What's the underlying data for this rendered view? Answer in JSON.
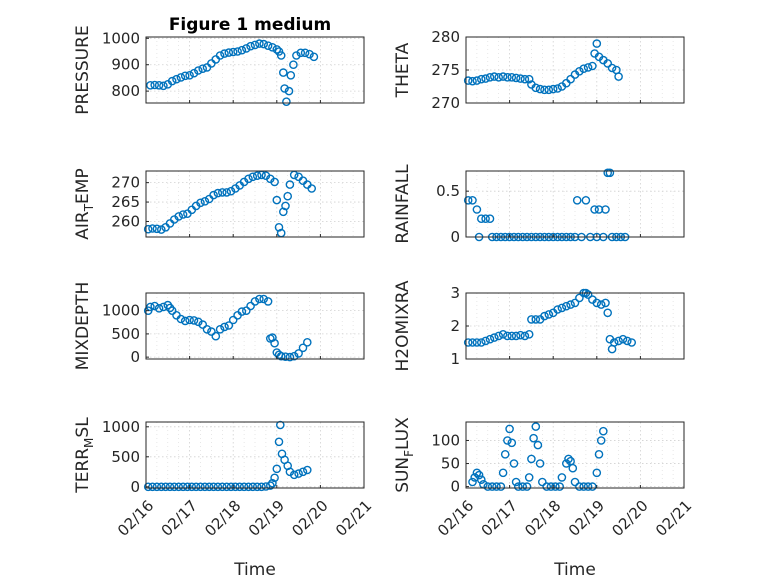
{
  "figure": {
    "title": "Figure 1 medium",
    "marker_color": "#0072BD"
  },
  "chart_data": [
    {
      "type": "scatter",
      "id": "pressure",
      "ylabel": "PRESSURE",
      "ylabel_sub": "",
      "ylim": [
        755,
        1005
      ],
      "yticks": [
        800,
        900,
        1000
      ],
      "xlim": [
        0,
        5
      ],
      "xticks": [],
      "points": [
        [
          0.1,
          822
        ],
        [
          0.2,
          823
        ],
        [
          0.3,
          822
        ],
        [
          0.4,
          820
        ],
        [
          0.5,
          826
        ],
        [
          0.6,
          838
        ],
        [
          0.7,
          845
        ],
        [
          0.8,
          852
        ],
        [
          0.9,
          858
        ],
        [
          1.0,
          860
        ],
        [
          1.1,
          868
        ],
        [
          1.2,
          878
        ],
        [
          1.3,
          885
        ],
        [
          1.4,
          890
        ],
        [
          1.5,
          905
        ],
        [
          1.6,
          920
        ],
        [
          1.7,
          935
        ],
        [
          1.8,
          942
        ],
        [
          1.9,
          946
        ],
        [
          2.0,
          948
        ],
        [
          2.1,
          950
        ],
        [
          2.2,
          955
        ],
        [
          2.3,
          962
        ],
        [
          2.4,
          970
        ],
        [
          2.5,
          975
        ],
        [
          2.6,
          980
        ],
        [
          2.7,
          978
        ],
        [
          2.8,
          972
        ],
        [
          2.9,
          966
        ],
        [
          3.0,
          958
        ],
        [
          3.05,
          950
        ],
        [
          3.1,
          935
        ],
        [
          3.15,
          870
        ],
        [
          3.18,
          810
        ],
        [
          3.22,
          760
        ],
        [
          3.28,
          800
        ],
        [
          3.32,
          860
        ],
        [
          3.38,
          900
        ],
        [
          3.45,
          935
        ],
        [
          3.55,
          945
        ],
        [
          3.65,
          945
        ],
        [
          3.75,
          940
        ],
        [
          3.85,
          930
        ]
      ]
    },
    {
      "type": "scatter",
      "id": "theta",
      "ylabel": "THETA",
      "ylabel_sub": "",
      "ylim": [
        270,
        280
      ],
      "yticks": [
        270,
        275,
        280
      ],
      "xlim": [
        0,
        5
      ],
      "xticks": [],
      "points": [
        [
          0.05,
          273.4
        ],
        [
          0.15,
          273.3
        ],
        [
          0.25,
          273.4
        ],
        [
          0.35,
          273.6
        ],
        [
          0.45,
          273.7
        ],
        [
          0.55,
          273.9
        ],
        [
          0.65,
          274.0
        ],
        [
          0.75,
          273.9
        ],
        [
          0.85,
          274.0
        ],
        [
          0.95,
          273.9
        ],
        [
          1.05,
          273.9
        ],
        [
          1.15,
          273.8
        ],
        [
          1.25,
          273.7
        ],
        [
          1.35,
          273.6
        ],
        [
          1.45,
          273.6
        ],
        [
          1.5,
          272.8
        ],
        [
          1.6,
          272.3
        ],
        [
          1.7,
          272.1
        ],
        [
          1.8,
          272.0
        ],
        [
          1.9,
          272.0
        ],
        [
          2.0,
          272.1
        ],
        [
          2.1,
          272.2
        ],
        [
          2.2,
          272.5
        ],
        [
          2.3,
          273.0
        ],
        [
          2.4,
          273.6
        ],
        [
          2.5,
          274.3
        ],
        [
          2.6,
          274.8
        ],
        [
          2.7,
          275.2
        ],
        [
          2.8,
          275.4
        ],
        [
          2.9,
          275.6
        ],
        [
          2.95,
          277.5
        ],
        [
          3.0,
          279.0
        ],
        [
          3.05,
          277.0
        ],
        [
          3.15,
          276.5
        ],
        [
          3.25,
          276.0
        ],
        [
          3.35,
          275.3
        ],
        [
          3.45,
          275.0
        ],
        [
          3.5,
          274.0
        ]
      ]
    },
    {
      "type": "scatter",
      "id": "air_temp",
      "ylabel": "AIR",
      "ylabel_sub": "T",
      "ylabel_tail": "EMP",
      "ylim": [
        256,
        273
      ],
      "yticks": [
        260,
        265,
        270
      ],
      "xlim": [
        0,
        5
      ],
      "xticks": [],
      "points": [
        [
          0.05,
          258.0
        ],
        [
          0.15,
          258.2
        ],
        [
          0.25,
          258.1
        ],
        [
          0.35,
          257.9
        ],
        [
          0.45,
          258.5
        ],
        [
          0.55,
          259.5
        ],
        [
          0.65,
          260.5
        ],
        [
          0.75,
          261.3
        ],
        [
          0.85,
          261.8
        ],
        [
          0.95,
          262.0
        ],
        [
          1.05,
          263.0
        ],
        [
          1.15,
          264.0
        ],
        [
          1.25,
          264.8
        ],
        [
          1.35,
          265.2
        ],
        [
          1.45,
          265.8
        ],
        [
          1.55,
          266.8
        ],
        [
          1.65,
          267.3
        ],
        [
          1.75,
          267.5
        ],
        [
          1.85,
          267.5
        ],
        [
          1.95,
          267.8
        ],
        [
          2.05,
          268.5
        ],
        [
          2.15,
          269.3
        ],
        [
          2.25,
          270.2
        ],
        [
          2.35,
          271.0
        ],
        [
          2.45,
          271.5
        ],
        [
          2.55,
          271.8
        ],
        [
          2.65,
          272.0
        ],
        [
          2.75,
          271.8
        ],
        [
          2.85,
          271.0
        ],
        [
          2.95,
          270.2
        ],
        [
          3.0,
          265.5
        ],
        [
          3.05,
          258.5
        ],
        [
          3.1,
          257.0
        ],
        [
          3.15,
          262.5
        ],
        [
          3.2,
          264.0
        ],
        [
          3.25,
          266.5
        ],
        [
          3.3,
          269.5
        ],
        [
          3.4,
          272.0
        ],
        [
          3.5,
          271.5
        ],
        [
          3.6,
          270.5
        ],
        [
          3.7,
          269.5
        ],
        [
          3.8,
          268.5
        ]
      ]
    },
    {
      "type": "scatter",
      "id": "rainfall",
      "ylabel": "RAINFALL",
      "ylabel_sub": "",
      "ylim": [
        0,
        0.72
      ],
      "yticks": [
        0,
        0.5
      ],
      "xlim": [
        0,
        5
      ],
      "xticks": [],
      "points": [
        [
          0.05,
          0.4
        ],
        [
          0.15,
          0.4
        ],
        [
          0.25,
          0.3
        ],
        [
          0.3,
          0.0
        ],
        [
          0.35,
          0.2
        ],
        [
          0.45,
          0.2
        ],
        [
          0.55,
          0.2
        ],
        [
          0.6,
          0.0
        ],
        [
          0.7,
          0.0
        ],
        [
          0.8,
          0.0
        ],
        [
          0.9,
          0.0
        ],
        [
          1.0,
          0.0
        ],
        [
          1.1,
          0.0
        ],
        [
          1.2,
          0.0
        ],
        [
          1.3,
          0.0
        ],
        [
          1.4,
          0.0
        ],
        [
          1.5,
          0.0
        ],
        [
          1.6,
          0.0
        ],
        [
          1.7,
          0.0
        ],
        [
          1.8,
          0.0
        ],
        [
          1.9,
          0.0
        ],
        [
          2.0,
          0.0
        ],
        [
          2.1,
          0.0
        ],
        [
          2.2,
          0.0
        ],
        [
          2.3,
          0.0
        ],
        [
          2.4,
          0.0
        ],
        [
          2.5,
          0.0
        ],
        [
          2.55,
          0.4
        ],
        [
          2.65,
          0.0
        ],
        [
          2.75,
          0.4
        ],
        [
          2.85,
          0.0
        ],
        [
          2.95,
          0.3
        ],
        [
          3.0,
          0.0
        ],
        [
          3.05,
          0.3
        ],
        [
          3.15,
          0.0
        ],
        [
          3.2,
          0.3
        ],
        [
          3.25,
          0.7
        ],
        [
          3.3,
          0.7
        ],
        [
          3.35,
          0.0
        ],
        [
          3.45,
          0.0
        ],
        [
          3.55,
          0.0
        ],
        [
          3.65,
          0.0
        ]
      ]
    },
    {
      "type": "scatter",
      "id": "mixdepth",
      "ylabel": "MIXDEPTH",
      "ylabel_sub": "",
      "ylim": [
        -40,
        1380
      ],
      "yticks": [
        0,
        500,
        1000
      ],
      "xlim": [
        0,
        5
      ],
      "xticks": [],
      "points": [
        [
          0.05,
          1000
        ],
        [
          0.1,
          1080
        ],
        [
          0.2,
          1100
        ],
        [
          0.3,
          1050
        ],
        [
          0.4,
          1080
        ],
        [
          0.5,
          1120
        ],
        [
          0.55,
          1060
        ],
        [
          0.6,
          1000
        ],
        [
          0.7,
          900
        ],
        [
          0.8,
          820
        ],
        [
          0.9,
          780
        ],
        [
          1.0,
          800
        ],
        [
          1.1,
          790
        ],
        [
          1.2,
          760
        ],
        [
          1.3,
          700
        ],
        [
          1.4,
          600
        ],
        [
          1.5,
          550
        ],
        [
          1.6,
          450
        ],
        [
          1.7,
          600
        ],
        [
          1.8,
          650
        ],
        [
          1.9,
          680
        ],
        [
          2.0,
          800
        ],
        [
          2.1,
          900
        ],
        [
          2.2,
          980
        ],
        [
          2.3,
          1000
        ],
        [
          2.4,
          1100
        ],
        [
          2.5,
          1200
        ],
        [
          2.6,
          1250
        ],
        [
          2.7,
          1250
        ],
        [
          2.8,
          1200
        ],
        [
          2.85,
          400
        ],
        [
          2.9,
          420
        ],
        [
          2.95,
          300
        ],
        [
          3.0,
          100
        ],
        [
          3.05,
          50
        ],
        [
          3.1,
          20
        ],
        [
          3.2,
          10
        ],
        [
          3.3,
          0
        ],
        [
          3.4,
          20
        ],
        [
          3.5,
          80
        ],
        [
          3.6,
          200
        ],
        [
          3.7,
          320
        ]
      ]
    },
    {
      "type": "scatter",
      "id": "h2omixra",
      "ylabel": "H2OMIXRA",
      "ylabel_sub": "",
      "ylim": [
        1,
        3
      ],
      "yticks": [
        1,
        2,
        3
      ],
      "xlim": [
        0,
        5
      ],
      "xticks": [],
      "points": [
        [
          0.05,
          1.5
        ],
        [
          0.15,
          1.5
        ],
        [
          0.25,
          1.5
        ],
        [
          0.35,
          1.5
        ],
        [
          0.45,
          1.55
        ],
        [
          0.55,
          1.6
        ],
        [
          0.65,
          1.65
        ],
        [
          0.75,
          1.7
        ],
        [
          0.85,
          1.75
        ],
        [
          0.95,
          1.7
        ],
        [
          1.05,
          1.7
        ],
        [
          1.15,
          1.7
        ],
        [
          1.25,
          1.72
        ],
        [
          1.35,
          1.7
        ],
        [
          1.45,
          1.75
        ],
        [
          1.5,
          2.2
        ],
        [
          1.6,
          2.2
        ],
        [
          1.7,
          2.2
        ],
        [
          1.8,
          2.3
        ],
        [
          1.9,
          2.35
        ],
        [
          2.0,
          2.4
        ],
        [
          2.1,
          2.5
        ],
        [
          2.2,
          2.55
        ],
        [
          2.3,
          2.6
        ],
        [
          2.4,
          2.65
        ],
        [
          2.5,
          2.7
        ],
        [
          2.6,
          2.85
        ],
        [
          2.7,
          3.0
        ],
        [
          2.75,
          3.0
        ],
        [
          2.8,
          2.95
        ],
        [
          2.9,
          2.8
        ],
        [
          3.0,
          2.7
        ],
        [
          3.1,
          2.65
        ],
        [
          3.2,
          2.7
        ],
        [
          3.25,
          2.4
        ],
        [
          3.3,
          1.6
        ],
        [
          3.35,
          1.3
        ],
        [
          3.4,
          1.5
        ],
        [
          3.5,
          1.55
        ],
        [
          3.6,
          1.6
        ],
        [
          3.7,
          1.55
        ],
        [
          3.8,
          1.5
        ]
      ]
    },
    {
      "type": "scatter",
      "id": "terr_msl",
      "ylabel": "TERR",
      "ylabel_sub": "M",
      "ylabel_tail": "SL",
      "ylim": [
        -20,
        1080
      ],
      "yticks": [
        0,
        500,
        1000
      ],
      "xlim": [
        0,
        5
      ],
      "xticks": [
        "02/16",
        "02/17",
        "02/18",
        "02/19",
        "02/20",
        "02/21"
      ],
      "xlabel": "Time",
      "points": [
        [
          0.05,
          0
        ],
        [
          0.15,
          0
        ],
        [
          0.25,
          0
        ],
        [
          0.35,
          0
        ],
        [
          0.45,
          0
        ],
        [
          0.55,
          0
        ],
        [
          0.65,
          0
        ],
        [
          0.75,
          0
        ],
        [
          0.85,
          0
        ],
        [
          0.95,
          0
        ],
        [
          1.05,
          0
        ],
        [
          1.15,
          0
        ],
        [
          1.25,
          0
        ],
        [
          1.35,
          0
        ],
        [
          1.45,
          0
        ],
        [
          1.55,
          0
        ],
        [
          1.65,
          0
        ],
        [
          1.75,
          0
        ],
        [
          1.85,
          0
        ],
        [
          1.95,
          0
        ],
        [
          2.05,
          0
        ],
        [
          2.15,
          0
        ],
        [
          2.25,
          0
        ],
        [
          2.35,
          0
        ],
        [
          2.45,
          0
        ],
        [
          2.55,
          0
        ],
        [
          2.65,
          0
        ],
        [
          2.75,
          5
        ],
        [
          2.85,
          20
        ],
        [
          2.9,
          60
        ],
        [
          2.95,
          150
        ],
        [
          3.0,
          300
        ],
        [
          3.05,
          750
        ],
        [
          3.08,
          1030
        ],
        [
          3.12,
          550
        ],
        [
          3.18,
          450
        ],
        [
          3.25,
          350
        ],
        [
          3.3,
          250
        ],
        [
          3.4,
          200
        ],
        [
          3.5,
          220
        ],
        [
          3.6,
          250
        ],
        [
          3.7,
          280
        ]
      ]
    },
    {
      "type": "scatter",
      "id": "sun_flux",
      "ylabel": "SUN",
      "ylabel_sub": "F",
      "ylabel_tail": "LUX",
      "ylim": [
        -3,
        140
      ],
      "yticks": [
        0,
        50,
        100
      ],
      "xlim": [
        0,
        5
      ],
      "xticks": [
        "02/16",
        "02/17",
        "02/18",
        "02/19",
        "02/20",
        "02/21"
      ],
      "xlabel": "Time",
      "points": [
        [
          0.15,
          10
        ],
        [
          0.2,
          20
        ],
        [
          0.25,
          30
        ],
        [
          0.3,
          25
        ],
        [
          0.35,
          15
        ],
        [
          0.4,
          5
        ],
        [
          0.5,
          0
        ],
        [
          0.6,
          0
        ],
        [
          0.7,
          0
        ],
        [
          0.8,
          0
        ],
        [
          0.85,
          30
        ],
        [
          0.9,
          70
        ],
        [
          0.95,
          100
        ],
        [
          1.0,
          125
        ],
        [
          1.05,
          95
        ],
        [
          1.1,
          50
        ],
        [
          1.15,
          10
        ],
        [
          1.2,
          0
        ],
        [
          1.3,
          0
        ],
        [
          1.4,
          0
        ],
        [
          1.45,
          20
        ],
        [
          1.5,
          60
        ],
        [
          1.55,
          105
        ],
        [
          1.6,
          130
        ],
        [
          1.65,
          90
        ],
        [
          1.7,
          50
        ],
        [
          1.75,
          10
        ],
        [
          1.85,
          0
        ],
        [
          1.95,
          0
        ],
        [
          2.05,
          0
        ],
        [
          2.15,
          0
        ],
        [
          2.2,
          20
        ],
        [
          2.3,
          50
        ],
        [
          2.35,
          60
        ],
        [
          2.4,
          55
        ],
        [
          2.45,
          40
        ],
        [
          2.5,
          10
        ],
        [
          2.6,
          0
        ],
        [
          2.7,
          0
        ],
        [
          2.8,
          0
        ],
        [
          2.9,
          0
        ],
        [
          3.0,
          30
        ],
        [
          3.05,
          70
        ],
        [
          3.1,
          100
        ],
        [
          3.15,
          120
        ]
      ]
    }
  ]
}
